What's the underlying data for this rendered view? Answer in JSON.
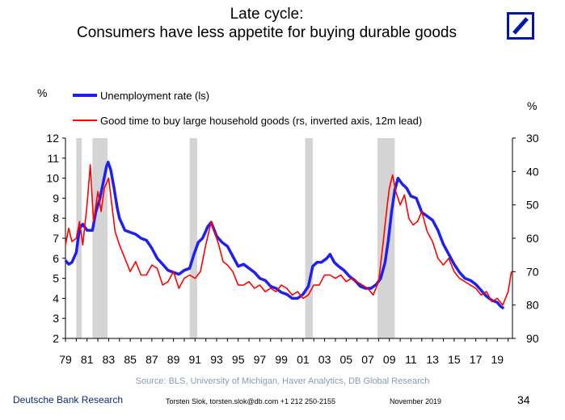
{
  "title": {
    "line1": "Late cycle:",
    "line2": "Consumers have less appetite for buying durable goods"
  },
  "logo": {
    "icon": "deutsche-bank-logo-icon",
    "color": "#0018a8"
  },
  "source": "Source: BLS, University of Michigan, Haver Analytics, DB Global Research",
  "footer": {
    "brand": "Deutsche Bank Research",
    "author": "Torsten Slok, torsten.slok@db.com +1 212 250-2155",
    "date": "November 2019",
    "page": "34"
  },
  "chart_data": {
    "type": "line",
    "left_unit": "%",
    "right_unit": "%",
    "x_tick_labels": [
      "79",
      "81",
      "83",
      "85",
      "87",
      "89",
      "91",
      "93",
      "95",
      "97",
      "99",
      "01",
      "03",
      "05",
      "07",
      "09",
      "11",
      "13",
      "15",
      "17",
      "19"
    ],
    "xlim": [
      1979,
      2020.4
    ],
    "y_left": {
      "lim": [
        2,
        12
      ],
      "ticks": [
        "12",
        "11",
        "10",
        "9",
        "8",
        "7",
        "6",
        "5",
        "4",
        "3",
        "2"
      ]
    },
    "y_right": {
      "lim": [
        30,
        90
      ],
      "inverted": true,
      "ticks": [
        "30",
        "40",
        "50",
        "60",
        "70",
        "80",
        "90"
      ]
    },
    "recessions": [
      [
        1980.0,
        1980.5
      ],
      [
        1981.5,
        1982.9
      ],
      [
        1990.5,
        1991.2
      ],
      [
        2001.2,
        2001.9
      ],
      [
        2007.9,
        2009.5
      ]
    ],
    "legend_position": "top-left",
    "series": [
      {
        "name": "Unemployment rate (ls)",
        "axis": "left",
        "color": "#1f1ff0",
        "x": [
          1979.0,
          1979.3,
          1979.6,
          1980.0,
          1980.3,
          1980.6,
          1981.0,
          1981.5,
          1981.8,
          1982.2,
          1982.5,
          1982.8,
          1982.95,
          1983.2,
          1983.5,
          1983.8,
          1984.0,
          1984.5,
          1985.0,
          1985.5,
          1986.0,
          1986.5,
          1987.0,
          1987.5,
          1988.0,
          1988.5,
          1989.0,
          1989.5,
          1990.0,
          1990.5,
          1990.9,
          1991.3,
          1991.7,
          1992.2,
          1992.5,
          1993.0,
          1993.5,
          1994.0,
          1994.5,
          1995.0,
          1995.5,
          1996.0,
          1996.5,
          1997.0,
          1997.5,
          1998.0,
          1998.5,
          1999.0,
          1999.5,
          2000.0,
          2000.5,
          2001.0,
          2001.5,
          2001.9,
          2002.3,
          2002.7,
          2003.2,
          2003.5,
          2003.9,
          2004.3,
          2004.8,
          2005.3,
          2005.8,
          2006.3,
          2006.8,
          2007.3,
          2007.8,
          2008.2,
          2008.6,
          2008.9,
          2009.2,
          2009.5,
          2009.8,
          2010.2,
          2010.6,
          2011.0,
          2011.5,
          2012.0,
          2012.5,
          2013.0,
          2013.5,
          2014.0,
          2014.5,
          2015.0,
          2015.5,
          2016.0,
          2016.5,
          2017.0,
          2017.5,
          2018.0,
          2018.5,
          2019.0,
          2019.3,
          2019.6
        ],
        "y": [
          5.9,
          5.7,
          5.8,
          6.3,
          7.5,
          7.7,
          7.4,
          7.4,
          8.3,
          9.0,
          9.8,
          10.6,
          10.8,
          10.4,
          9.5,
          8.5,
          8.0,
          7.4,
          7.3,
          7.2,
          7.0,
          6.9,
          6.5,
          6.0,
          5.7,
          5.4,
          5.3,
          5.2,
          5.4,
          5.5,
          6.2,
          6.8,
          7.0,
          7.6,
          7.8,
          7.1,
          6.8,
          6.6,
          6.1,
          5.6,
          5.7,
          5.5,
          5.3,
          5.0,
          4.9,
          4.6,
          4.5,
          4.3,
          4.2,
          4.0,
          4.0,
          4.2,
          4.6,
          5.6,
          5.8,
          5.8,
          6.0,
          6.2,
          5.8,
          5.6,
          5.4,
          5.1,
          4.9,
          4.6,
          4.5,
          4.5,
          4.7,
          5.0,
          5.8,
          6.9,
          8.3,
          9.4,
          10.0,
          9.7,
          9.5,
          9.1,
          9.0,
          8.3,
          8.1,
          7.9,
          7.4,
          6.7,
          6.2,
          5.7,
          5.3,
          5.0,
          4.9,
          4.7,
          4.4,
          4.1,
          3.9,
          3.8,
          3.6,
          3.5
        ]
      },
      {
        "name": "Good time to buy large household goods (rs, inverted axis, 12m lead)",
        "axis": "right",
        "color": "#ff0000",
        "x": [
          1979.0,
          1979.3,
          1979.6,
          1980.0,
          1980.3,
          1980.6,
          1981.0,
          1981.3,
          1981.6,
          1982.0,
          1982.3,
          1982.6,
          1983.0,
          1983.3,
          1983.6,
          1984.0,
          1984.5,
          1985.0,
          1985.5,
          1986.0,
          1986.5,
          1987.0,
          1987.5,
          1988.0,
          1988.5,
          1989.0,
          1989.5,
          1990.0,
          1990.5,
          1991.0,
          1991.5,
          1992.0,
          1992.5,
          1992.8,
          1993.2,
          1993.6,
          1994.0,
          1994.5,
          1995.0,
          1995.5,
          1996.0,
          1996.5,
          1997.0,
          1997.5,
          1998.0,
          1998.5,
          1999.0,
          1999.5,
          2000.0,
          2000.5,
          2001.0,
          2001.5,
          2002.0,
          2002.5,
          2003.0,
          2003.5,
          2004.0,
          2004.5,
          2005.0,
          2005.5,
          2006.0,
          2006.5,
          2007.0,
          2007.5,
          2008.0,
          2008.4,
          2008.8,
          2009.0,
          2009.3,
          2009.6,
          2010.0,
          2010.4,
          2010.8,
          2011.2,
          2011.6,
          2012.0,
          2012.5,
          2013.0,
          2013.5,
          2014.0,
          2014.5,
          2015.0,
          2015.5,
          2016.0,
          2016.5,
          2017.0,
          2017.5,
          2018.0,
          2018.5,
          2019.0,
          2019.5,
          2020.0,
          2020.3
        ],
        "y": [
          62,
          57,
          61,
          60,
          55,
          62,
          50,
          38,
          55,
          46,
          52,
          45,
          42,
          50,
          58,
          62,
          66,
          70,
          67,
          71,
          71,
          68,
          69,
          74,
          73,
          70,
          75,
          72,
          71,
          72,
          70,
          62,
          55,
          58,
          62,
          67,
          68,
          70,
          74,
          74,
          73,
          75,
          74,
          76,
          75,
          76,
          74,
          75,
          77,
          76,
          78,
          77,
          74,
          74,
          71,
          71,
          72,
          71,
          73,
          72,
          73,
          74,
          75,
          77,
          73,
          62,
          50,
          45,
          41,
          46,
          50,
          47,
          54,
          56,
          55,
          52,
          58,
          61,
          66,
          68,
          66,
          70,
          72,
          73,
          74,
          75,
          77,
          76,
          79,
          78,
          80,
          76,
          70
        ]
      }
    ]
  }
}
